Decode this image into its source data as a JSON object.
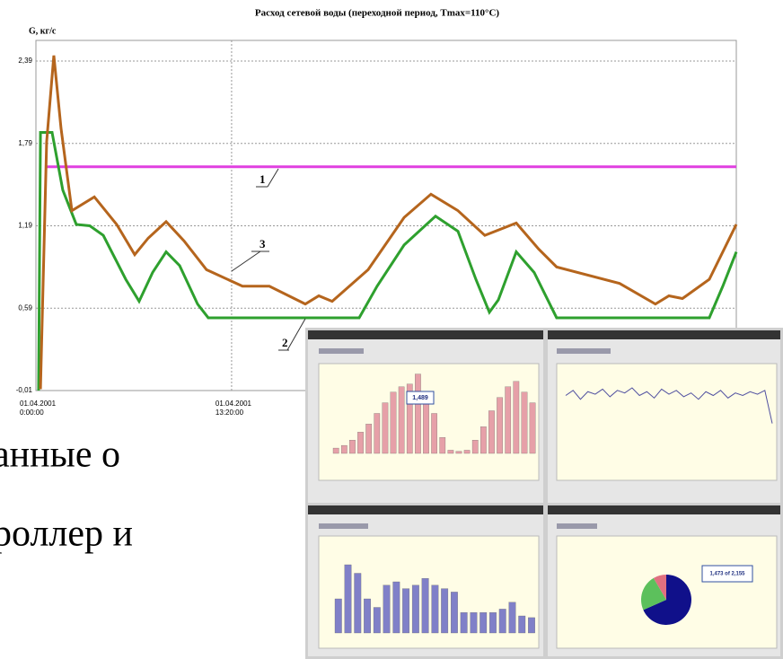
{
  "chart_data": {
    "type": "line",
    "title": "Расход сетевой воды (переходной   период, Tmax=110°C)",
    "y_label": "G, кг/с",
    "xlim": [
      0,
      47.71
    ],
    "ylim": [
      -0.01,
      2.54
    ],
    "yticks": [
      {
        "value": 2.39,
        "label": "2,39"
      },
      {
        "value": 1.79,
        "label": "1,79"
      },
      {
        "value": 1.19,
        "label": "1,19"
      },
      {
        "value": 0.59,
        "label": "0,59"
      },
      {
        "value": -0.01,
        "label": "-0,01"
      }
    ],
    "xticks": [
      {
        "value": 0,
        "label": "01.04.2001 0:00:00"
      },
      {
        "value": 13.33,
        "label": "01.04.2001 13:20:00"
      }
    ],
    "grid": true,
    "series": [
      {
        "name": "1",
        "color": "#e040e0",
        "x": [
          0.61,
          47.71
        ],
        "values": [
          1.62,
          1.62
        ]
      },
      {
        "name": "2",
        "color": "#2ea02e",
        "x": [
          0.18,
          0.31,
          1.1,
          1.83,
          2.75,
          3.67,
          4.59,
          6.12,
          7.03,
          7.95,
          8.87,
          9.79,
          11.01,
          11.74,
          22.02,
          23.24,
          25.08,
          27.22,
          28.75,
          29.97,
          30.89,
          31.5,
          32.72,
          33.94,
          35.47,
          45.87,
          46.79,
          47.71
        ],
        "values": [
          -0.01,
          1.87,
          1.87,
          1.45,
          1.2,
          1.19,
          1.12,
          0.8,
          0.64,
          0.85,
          1.0,
          0.9,
          0.62,
          0.52,
          0.52,
          0.75,
          1.05,
          1.26,
          1.15,
          0.8,
          0.56,
          0.65,
          1.0,
          0.85,
          0.52,
          0.52,
          0.75,
          1.0
        ]
      },
      {
        "name": "3",
        "color": "#b5651d",
        "x": [
          0.31,
          0.73,
          1.22,
          1.71,
          2.45,
          3.98,
          5.5,
          6.73,
          7.65,
          8.87,
          10.09,
          11.62,
          14.07,
          15.9,
          18.35,
          19.27,
          20.18,
          22.63,
          25.08,
          26.91,
          28.75,
          30.58,
          32.72,
          34.25,
          35.47,
          39.76,
          42.2,
          43.12,
          44.04,
          45.87,
          47.71
        ],
        "values": [
          0.0,
          1.8,
          2.43,
          1.9,
          1.3,
          1.4,
          1.2,
          0.98,
          1.1,
          1.22,
          1.08,
          0.87,
          0.75,
          0.75,
          0.62,
          0.68,
          0.64,
          0.87,
          1.25,
          1.42,
          1.3,
          1.12,
          1.21,
          1.02,
          0.89,
          0.77,
          0.62,
          0.68,
          0.66,
          0.8,
          1.2
        ]
      }
    ]
  },
  "caption_lines": [
    "анные о",
    "роллер и"
  ],
  "inset": {
    "bars1": {
      "values": [
        100,
        150,
        250,
        400,
        550,
        750,
        950,
        1150,
        1250,
        1300,
        1489,
        1150,
        750,
        300,
        60,
        40,
        60,
        250,
        500,
        800,
        1050,
        1250,
        1350,
        1150,
        950
      ],
      "ylim": [
        0,
        1600
      ],
      "highlight": "1,489"
    },
    "line2": {
      "values": [
        4.2,
        4.6,
        3.9,
        4.5,
        4.3,
        4.7,
        4.1,
        4.6,
        4.4,
        4.8,
        4.2,
        4.5,
        4.0,
        4.7,
        4.3,
        4.6,
        4.1,
        4.4,
        3.9,
        4.5,
        4.2,
        4.6,
        4.0,
        4.4,
        4.2,
        4.5,
        4.3,
        4.6,
        2.0
      ],
      "ylim": [
        0,
        6
      ]
    },
    "bars3": {
      "values": [
        2.0,
        4.0,
        3.5,
        2.0,
        1.5,
        2.8,
        3.0,
        2.6,
        2.8,
        3.2,
        2.8,
        2.6,
        2.4,
        1.2,
        1.2,
        1.2,
        1.2,
        1.4,
        1.8,
        1.0,
        0.9
      ],
      "ylim": [
        0,
        5
      ]
    },
    "pie4": {
      "values": [
        1473,
        500,
        182
      ],
      "colors": [
        "#10108a",
        "#5cc05c",
        "#e07080"
      ],
      "label": "1,473 of 2,155"
    }
  }
}
